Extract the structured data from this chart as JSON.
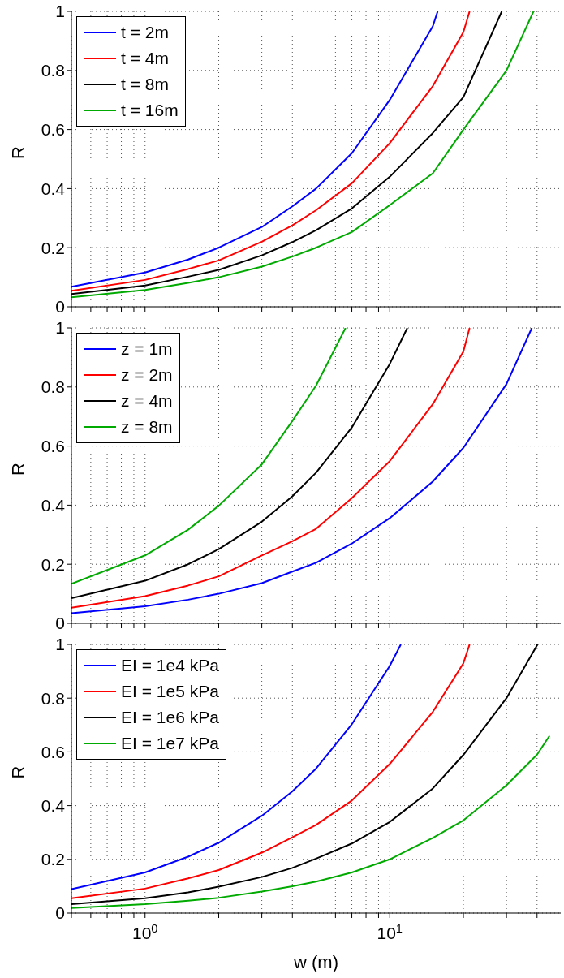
{
  "chart_data": [
    {
      "type": "line",
      "ylabel": "R",
      "xlim": [
        0.5,
        50
      ],
      "ylim": [
        0,
        1
      ],
      "log": "x",
      "grid": true,
      "legend": "top left",
      "tick_labels": "y",
      "marker": "none",
      "line_style": "solid",
      "xticks": [
        {
          "value": 0.5,
          "label": null
        },
        {
          "value": 0.6,
          "label": null
        },
        {
          "value": 0.7,
          "label": null
        },
        {
          "value": 0.8,
          "label": null
        },
        {
          "value": 0.9,
          "label": null
        },
        {
          "value": 1,
          "label": null
        },
        {
          "value": 2,
          "label": null
        },
        {
          "value": 3,
          "label": null
        },
        {
          "value": 4,
          "label": null
        },
        {
          "value": 5,
          "label": null
        },
        {
          "value": 6,
          "label": null
        },
        {
          "value": 7,
          "label": null
        },
        {
          "value": 8,
          "label": null
        },
        {
          "value": 9,
          "label": null
        },
        {
          "value": 10,
          "label": null
        },
        {
          "value": 20,
          "label": null
        },
        {
          "value": 30,
          "label": null
        },
        {
          "value": 40,
          "label": null
        }
      ],
      "yticks": [
        0,
        0.2,
        0.4,
        0.6,
        0.8,
        1
      ],
      "series": [
        {
          "name": "t = 2m",
          "color": "#0000ff",
          "x": [
            0.5,
            1,
            1.5,
            2,
            3,
            4,
            5,
            7,
            10,
            15,
            15.7
          ],
          "values": [
            0.068,
            0.116,
            0.16,
            0.2,
            0.27,
            0.34,
            0.4,
            0.52,
            0.7,
            0.95,
            1
          ]
        },
        {
          "name": "t = 4m",
          "color": "#ff0000",
          "x": [
            0.5,
            1,
            1.5,
            2,
            3,
            4,
            5,
            7,
            10,
            15,
            20,
            21.2
          ],
          "values": [
            0.054,
            0.091,
            0.128,
            0.157,
            0.22,
            0.276,
            0.327,
            0.418,
            0.554,
            0.747,
            0.93,
            1
          ]
        },
        {
          "name": "t = 8m",
          "color": "#000000",
          "x": [
            0.5,
            1,
            1.5,
            2,
            3,
            4,
            5,
            7,
            10,
            15,
            20,
            28.7
          ],
          "values": [
            0.043,
            0.072,
            0.102,
            0.125,
            0.174,
            0.219,
            0.259,
            0.333,
            0.44,
            0.588,
            0.71,
            1
          ]
        },
        {
          "name": "t = 16m",
          "color": "#00aa00",
          "x": [
            0.5,
            1,
            1.5,
            2,
            3,
            4,
            5,
            7,
            10,
            15,
            20,
            30,
            38.7
          ],
          "values": [
            0.032,
            0.057,
            0.081,
            0.1,
            0.136,
            0.17,
            0.2,
            0.253,
            0.344,
            0.452,
            0.6,
            0.8,
            1
          ]
        }
      ]
    },
    {
      "type": "line",
      "ylabel": "R",
      "xlim": [
        0.5,
        50
      ],
      "ylim": [
        0,
        1
      ],
      "log": "x",
      "grid": true,
      "legend": "top left",
      "tick_labels": "y",
      "marker": "none",
      "line_style": "solid",
      "xticks": [
        {
          "value": 0.5,
          "label": null
        },
        {
          "value": 0.6,
          "label": null
        },
        {
          "value": 0.7,
          "label": null
        },
        {
          "value": 0.8,
          "label": null
        },
        {
          "value": 0.9,
          "label": null
        },
        {
          "value": 1,
          "label": null
        },
        {
          "value": 2,
          "label": null
        },
        {
          "value": 3,
          "label": null
        },
        {
          "value": 4,
          "label": null
        },
        {
          "value": 5,
          "label": null
        },
        {
          "value": 6,
          "label": null
        },
        {
          "value": 7,
          "label": null
        },
        {
          "value": 8,
          "label": null
        },
        {
          "value": 9,
          "label": null
        },
        {
          "value": 10,
          "label": null
        },
        {
          "value": 20,
          "label": null
        },
        {
          "value": 30,
          "label": null
        },
        {
          "value": 40,
          "label": null
        }
      ],
      "yticks": [
        0,
        0.2,
        0.4,
        0.6,
        0.8,
        1
      ],
      "series": [
        {
          "name": "z = 1m",
          "color": "#0000ff",
          "x": [
            0.5,
            1,
            1.5,
            2,
            3,
            4,
            5,
            7,
            10,
            15,
            20,
            30,
            38.1
          ],
          "values": [
            0.034,
            0.058,
            0.08,
            0.1,
            0.136,
            0.175,
            0.205,
            0.27,
            0.356,
            0.48,
            0.594,
            0.81,
            1
          ]
        },
        {
          "name": "z = 2m",
          "color": "#ff0000",
          "x": [
            0.5,
            1,
            1.5,
            2,
            3,
            4,
            5,
            7,
            10,
            15,
            20,
            21.2
          ],
          "values": [
            0.053,
            0.092,
            0.128,
            0.159,
            0.23,
            0.278,
            0.32,
            0.424,
            0.549,
            0.742,
            0.92,
            1
          ]
        },
        {
          "name": "z = 4m",
          "color": "#000000",
          "x": [
            0.5,
            1,
            1.5,
            2,
            3,
            4,
            5,
            7,
            10,
            11.8
          ],
          "values": [
            0.085,
            0.144,
            0.2,
            0.251,
            0.344,
            0.43,
            0.51,
            0.663,
            0.878,
            1
          ]
        },
        {
          "name": "z = 8m",
          "color": "#00aa00",
          "x": [
            0.5,
            1,
            1.5,
            2,
            3,
            4,
            5,
            6.6
          ],
          "values": [
            0.134,
            0.23,
            0.317,
            0.398,
            0.538,
            0.685,
            0.805,
            1
          ]
        }
      ]
    },
    {
      "type": "line",
      "xlabel": "w (m)",
      "ylabel": "R",
      "xlim": [
        0.5,
        50
      ],
      "ylim": [
        0,
        1
      ],
      "log": "x",
      "grid": true,
      "legend": "top left",
      "marker": "none",
      "line_style": "solid",
      "xticks": [
        {
          "value": 0.5,
          "label": null
        },
        {
          "value": 0.6,
          "label": null
        },
        {
          "value": 0.7,
          "label": null
        },
        {
          "value": 0.8,
          "label": null
        },
        {
          "value": 0.9,
          "label": null
        },
        {
          "value": 1,
          "label": "10$^{0}$"
        },
        {
          "value": 2,
          "label": null
        },
        {
          "value": 3,
          "label": null
        },
        {
          "value": 4,
          "label": null
        },
        {
          "value": 5,
          "label": null
        },
        {
          "value": 6,
          "label": null
        },
        {
          "value": 7,
          "label": null
        },
        {
          "value": 8,
          "label": null
        },
        {
          "value": 9,
          "label": null
        },
        {
          "value": 10,
          "label": "10$^{1}$"
        },
        {
          "value": 20,
          "label": null
        },
        {
          "value": 30,
          "label": null
        },
        {
          "value": 40,
          "label": null
        }
      ],
      "yticks": [
        0,
        0.2,
        0.4,
        0.6,
        0.8,
        1
      ],
      "series": [
        {
          "name": "EI = 1e4 kPa",
          "color": "#0000ff",
          "x": [
            0.5,
            1,
            1.5,
            2,
            3,
            4,
            5,
            7,
            10,
            11.1
          ],
          "values": [
            0.089,
            0.151,
            0.21,
            0.262,
            0.362,
            0.453,
            0.538,
            0.703,
            0.92,
            1
          ]
        },
        {
          "name": "EI = 1e5 kPa",
          "color": "#ff0000",
          "x": [
            0.5,
            1,
            1.5,
            2,
            3,
            4,
            5,
            7,
            10,
            15,
            20,
            21.2
          ],
          "values": [
            0.055,
            0.091,
            0.129,
            0.16,
            0.225,
            0.282,
            0.328,
            0.419,
            0.555,
            0.749,
            0.93,
            1
          ]
        },
        {
          "name": "EI = 1e6 kPa",
          "color": "#000000",
          "x": [
            0.5,
            1,
            1.5,
            2,
            3,
            4,
            5,
            7,
            10,
            15,
            20,
            30,
            40.2
          ],
          "values": [
            0.033,
            0.055,
            0.077,
            0.098,
            0.134,
            0.168,
            0.203,
            0.259,
            0.339,
            0.464,
            0.589,
            0.8,
            1
          ]
        },
        {
          "name": "EI = 1e7 kPa",
          "color": "#00aa00",
          "x": [
            0.5,
            1,
            1.5,
            2,
            3,
            4,
            5,
            7,
            10,
            15,
            20,
            30,
            40,
            45
          ],
          "values": [
            0.019,
            0.033,
            0.046,
            0.057,
            0.08,
            0.1,
            0.117,
            0.151,
            0.2,
            0.28,
            0.345,
            0.476,
            0.59,
            0.66
          ]
        }
      ]
    }
  ]
}
